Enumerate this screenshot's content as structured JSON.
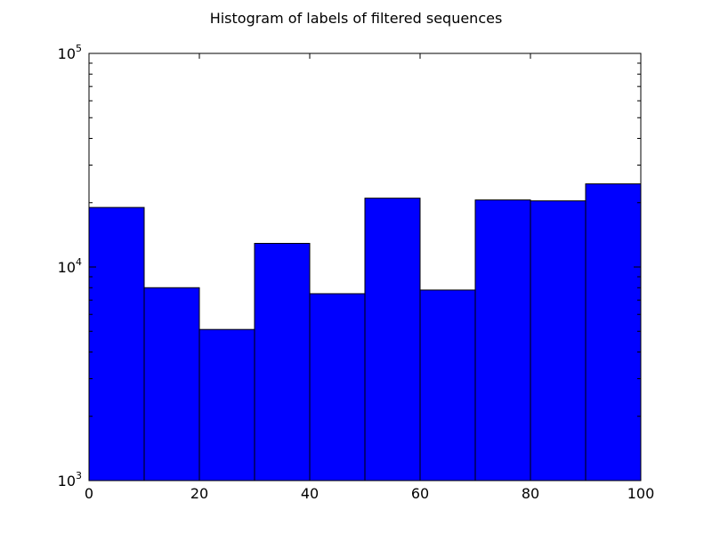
{
  "chart_data": {
    "type": "bar",
    "title": "Histogram of labels of filtered sequences",
    "xlabel": "",
    "ylabel": "",
    "y_scale": "log",
    "xlim": [
      0,
      100
    ],
    "ylim": [
      1000,
      100000
    ],
    "bin_edges": [
      0,
      10,
      20,
      30,
      40,
      50,
      60,
      70,
      80,
      90,
      100
    ],
    "values": [
      19000,
      8000,
      5100,
      12900,
      7500,
      21000,
      7800,
      20600,
      20400,
      24500
    ],
    "x_ticks": [
      0,
      20,
      40,
      60,
      80,
      100
    ],
    "x_tick_labels": [
      "0",
      "20",
      "40",
      "60",
      "80",
      "100"
    ],
    "y_ticks": [
      1000,
      10000,
      100000
    ],
    "y_tick_labels": [
      {
        "base": "10",
        "exp": "3"
      },
      {
        "base": "10",
        "exp": "4"
      },
      {
        "base": "10",
        "exp": "5"
      }
    ],
    "bar_color": "#0000ff",
    "edge_color": "#000000",
    "grid": false,
    "legend": "none"
  }
}
